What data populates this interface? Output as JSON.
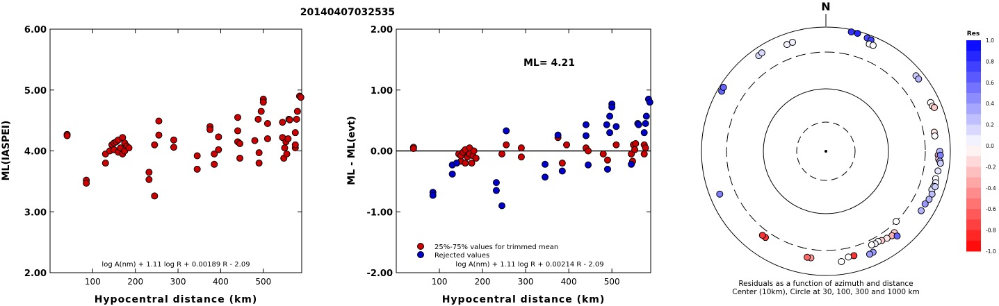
{
  "title": "20140407032535",
  "chart_data": [
    {
      "type": "scatter",
      "xlabel": "Hypocentral distance (km)",
      "ylabel": "ML(IASPEI)",
      "xlim": [
        0,
        590
      ],
      "ylim": [
        2.0,
        6.0
      ],
      "xticks": [
        "100",
        "200",
        "300",
        "400",
        "500"
      ],
      "yticks": [
        "2.00",
        "3.00",
        "4.00",
        "5.00",
        "6.00"
      ],
      "formula": "log A(nm) + 1.11 log R + 0.00189 R - 2.09",
      "marker_color": "#cc0000",
      "points": [
        [
          40,
          4.27
        ],
        [
          40,
          4.25
        ],
        [
          85,
          3.52
        ],
        [
          85,
          3.47
        ],
        [
          130,
          3.8
        ],
        [
          130,
          3.95
        ],
        [
          140,
          4.0
        ],
        [
          145,
          4.1
        ],
        [
          150,
          4.02
        ],
        [
          150,
          4.13
        ],
        [
          155,
          4.15
        ],
        [
          160,
          4.18
        ],
        [
          160,
          3.98
        ],
        [
          165,
          4.05
        ],
        [
          170,
          4.22
        ],
        [
          170,
          3.95
        ],
        [
          175,
          4.0
        ],
        [
          175,
          4.13
        ],
        [
          180,
          4.08
        ],
        [
          185,
          4.05
        ],
        [
          232,
          3.65
        ],
        [
          232,
          3.53
        ],
        [
          245,
          3.26
        ],
        [
          245,
          4.1
        ],
        [
          255,
          4.49
        ],
        [
          255,
          4.26
        ],
        [
          290,
          4.18
        ],
        [
          290,
          4.06
        ],
        [
          345,
          3.92
        ],
        [
          345,
          3.7
        ],
        [
          375,
          4.4
        ],
        [
          375,
          4.35
        ],
        [
          385,
          3.78
        ],
        [
          385,
          3.95
        ],
        [
          395,
          4.23
        ],
        [
          395,
          4.02
        ],
        [
          440,
          4.55
        ],
        [
          440,
          4.33
        ],
        [
          440,
          4.15
        ],
        [
          445,
          3.88
        ],
        [
          445,
          4.12
        ],
        [
          480,
          4.17
        ],
        [
          488,
          4.52
        ],
        [
          490,
          3.8
        ],
        [
          490,
          3.97
        ],
        [
          495,
          4.65
        ],
        [
          500,
          4.85
        ],
        [
          500,
          4.8
        ],
        [
          510,
          4.45
        ],
        [
          510,
          4.2
        ],
        [
          545,
          4.47
        ],
        [
          545,
          4.22
        ],
        [
          548,
          3.88
        ],
        [
          550,
          4.05
        ],
        [
          553,
          4.15
        ],
        [
          555,
          3.95
        ],
        [
          558,
          4.2
        ],
        [
          560,
          4.52
        ],
        [
          562,
          4.51
        ],
        [
          575,
          4.05
        ],
        [
          575,
          4.1
        ],
        [
          575,
          4.3
        ],
        [
          578,
          4.52
        ],
        [
          580,
          4.65
        ],
        [
          585,
          4.9
        ],
        [
          588,
          4.88
        ]
      ]
    },
    {
      "type": "scatter",
      "xlabel": "Hypocentral distance (km)",
      "ylabel": "ML - ML(evt)",
      "xlim": [
        0,
        590
      ],
      "ylim": [
        -2.0,
        2.0
      ],
      "xticks": [
        "100",
        "200",
        "300",
        "400",
        "500"
      ],
      "yticks": [
        "-2.00",
        "-1.00",
        "0.00",
        "1.00",
        "2.00"
      ],
      "ml_label": "ML= 4.21",
      "formula": "log A(nm) + 1.11 log R + 0.00214 R - 2.09",
      "legend": [
        {
          "label": "25%-75% values for trimmed mean",
          "color": "#cc0000"
        },
        {
          "label": "Rejected values",
          "color": "#0000cc"
        }
      ],
      "series": [
        {
          "name": "25%-75% values for trimmed mean",
          "color": "#cc0000",
          "points": [
            [
              40,
              0.06
            ],
            [
              40,
              0.04
            ],
            [
              145,
              -0.05
            ],
            [
              150,
              -0.17
            ],
            [
              150,
              -0.08
            ],
            [
              155,
              -0.02
            ],
            [
              160,
              0.02
            ],
            [
              160,
              -0.2
            ],
            [
              165,
              -0.1
            ],
            [
              170,
              0.05
            ],
            [
              170,
              -0.05
            ],
            [
              175,
              -0.2
            ],
            [
              178,
              -0.08
            ],
            [
              180,
              0.0
            ],
            [
              185,
              -0.12
            ],
            [
              245,
              -0.05
            ],
            [
              255,
              0.1
            ],
            [
              290,
              0.05
            ],
            [
              290,
              -0.1
            ],
            [
              375,
              0.22
            ],
            [
              385,
              -0.2
            ],
            [
              395,
              0.1
            ],
            [
              440,
              0.05
            ],
            [
              445,
              0.0
            ],
            [
              480,
              -0.05
            ],
            [
              490,
              -0.15
            ],
            [
              510,
              0.1
            ],
            [
              545,
              -0.05
            ],
            [
              548,
              -0.17
            ],
            [
              550,
              0.1
            ],
            [
              553,
              0.02
            ],
            [
              555,
              0.12
            ],
            [
              575,
              -0.05
            ],
            [
              575,
              0.1
            ],
            [
              578,
              0.05
            ]
          ]
        },
        {
          "name": "Rejected values",
          "color": "#0000cc",
          "points": [
            [
              85,
              -0.68
            ],
            [
              85,
              -0.73
            ],
            [
              130,
              -0.23
            ],
            [
              130,
              -0.38
            ],
            [
              140,
              -0.2
            ],
            [
              232,
              -0.52
            ],
            [
              232,
              -0.65
            ],
            [
              245,
              -0.9
            ],
            [
              255,
              0.33
            ],
            [
              345,
              -0.22
            ],
            [
              345,
              -0.43
            ],
            [
              375,
              0.26
            ],
            [
              385,
              -0.33
            ],
            [
              440,
              0.43
            ],
            [
              440,
              0.25
            ],
            [
              445,
              -0.23
            ],
            [
              488,
              0.43
            ],
            [
              490,
              -0.3
            ],
            [
              495,
              0.57
            ],
            [
              495,
              0.3
            ],
            [
              500,
              0.77
            ],
            [
              500,
              0.72
            ],
            [
              510,
              0.4
            ],
            [
              545,
              -0.22
            ],
            [
              560,
              0.45
            ],
            [
              562,
              0.43
            ],
            [
              575,
              0.3
            ],
            [
              578,
              0.45
            ],
            [
              580,
              0.57
            ],
            [
              585,
              0.85
            ],
            [
              588,
              0.8
            ]
          ]
        }
      ]
    },
    {
      "type": "scatter",
      "subtype": "polar",
      "north_label": "N",
      "caption_line1": "Residuals as a function of azimuth and distance",
      "caption_line2": "Center (10km), Circle at 30, 100, 300 and 1000 km",
      "colorbar_title": "Res",
      "colorbar_ticks": [
        "1.0",
        "0.8",
        "0.6",
        "0.4",
        "0.2",
        "0.0",
        "-0.2",
        "-0.4",
        "-0.6",
        "-0.8",
        "-1.0"
      ],
      "points": [
        {
          "az": 300,
          "dist": 820,
          "res": 0.6
        },
        {
          "az": 302,
          "dist": 840,
          "res": 0.6
        },
        {
          "az": 325,
          "dist": 700,
          "res": 0.15
        },
        {
          "az": 327,
          "dist": 720,
          "res": 0.15
        },
        {
          "az": 340,
          "dist": 600,
          "res": 0.05
        },
        {
          "az": 343,
          "dist": 610,
          "res": 0.05
        },
        {
          "az": 12,
          "dist": 900,
          "res": 0.8
        },
        {
          "az": 15,
          "dist": 900,
          "res": 0.85
        },
        {
          "az": 20,
          "dist": 840,
          "res": 0.7
        },
        {
          "az": 22,
          "dist": 820,
          "res": 0.75
        },
        {
          "az": 22,
          "dist": 660,
          "res": 0.02
        },
        {
          "az": 24,
          "dist": 670,
          "res": 0.02
        },
        {
          "az": 50,
          "dist": 720,
          "res": 0.2
        },
        {
          "az": 52,
          "dist": 720,
          "res": 0.3
        },
        {
          "az": 65,
          "dist": 650,
          "res": 0.0
        },
        {
          "az": 67,
          "dist": 660,
          "res": -0.1
        },
        {
          "az": 68,
          "dist": 700,
          "res": -0.2
        },
        {
          "az": 80,
          "dist": 500,
          "res": -0.1
        },
        {
          "az": 82,
          "dist": 500,
          "res": 0.02
        },
        {
          "az": 92,
          "dist": 560,
          "res": -0.3
        },
        {
          "az": 94,
          "dist": 580,
          "res": -0.2
        },
        {
          "az": 90,
          "dist": 600,
          "res": 0.3
        },
        {
          "az": 92,
          "dist": 620,
          "res": 0.5
        },
        {
          "az": 95,
          "dist": 620,
          "res": 0.3
        },
        {
          "az": 96,
          "dist": 640,
          "res": 0.2
        },
        {
          "az": 100,
          "dist": 600,
          "res": 0.1
        },
        {
          "az": 104,
          "dist": 580,
          "res": 0.02
        },
        {
          "az": 106,
          "dist": 610,
          "res": 0.05
        },
        {
          "az": 108,
          "dist": 590,
          "res": 0.0
        },
        {
          "az": 110,
          "dist": 570,
          "res": 0.1
        },
        {
          "az": 108,
          "dist": 630,
          "res": 0.2
        },
        {
          "az": 112,
          "dist": 620,
          "res": 0.25
        },
        {
          "az": 115,
          "dist": 600,
          "res": 0.3
        },
        {
          "az": 118,
          "dist": 560,
          "res": 0.4
        },
        {
          "az": 122,
          "dist": 560,
          "res": 0.3
        },
        {
          "az": 135,
          "dist": 300,
          "res": 0.0
        },
        {
          "az": 140,
          "dist": 420,
          "res": -0.2
        },
        {
          "az": 142,
          "dist": 440,
          "res": -0.3
        },
        {
          "az": 145,
          "dist": 420,
          "res": -0.1
        },
        {
          "az": 148,
          "dist": 400,
          "res": -0.2
        },
        {
          "az": 150,
          "dist": 380,
          "res": 0.0
        },
        {
          "az": 152,
          "dist": 390,
          "res": 0.05
        },
        {
          "az": 154,
          "dist": 380,
          "res": 0.0
        },
        {
          "az": 140,
          "dist": 520,
          "res": 0.6
        },
        {
          "az": 155,
          "dist": 540,
          "res": 0.4
        },
        {
          "az": 157,
          "dist": 550,
          "res": 0.4
        },
        {
          "az": 165,
          "dist": 460,
          "res": -0.8
        },
        {
          "az": 168,
          "dist": 460,
          "res": 0.0
        },
        {
          "az": 172,
          "dist": 540,
          "res": 0.0
        },
        {
          "az": 188,
          "dist": 450,
          "res": -0.4
        },
        {
          "az": 190,
          "dist": 450,
          "res": -0.6
        },
        {
          "az": 215,
          "dist": 400,
          "res": -0.8
        },
        {
          "az": 217,
          "dist": 400,
          "res": -0.8
        },
        {
          "az": 248,
          "dist": 620,
          "res": 0.5
        }
      ]
    }
  ]
}
